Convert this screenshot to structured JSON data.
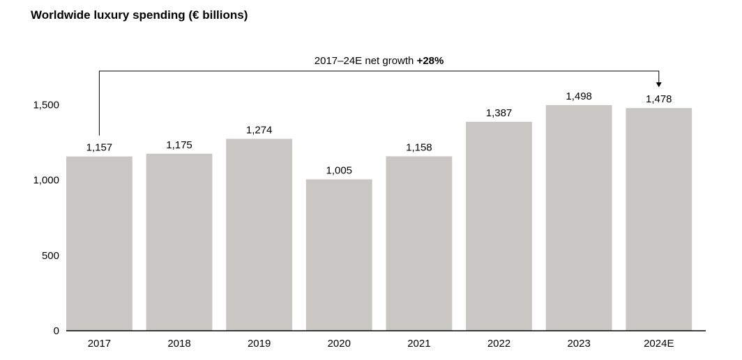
{
  "chart_data": {
    "type": "bar",
    "title": "Worldwide luxury spending (€ billions)",
    "categories": [
      "2017",
      "2018",
      "2019",
      "2020",
      "2021",
      "2022",
      "2023",
      "2024E"
    ],
    "values": [
      1157,
      1175,
      1274,
      1005,
      1158,
      1387,
      1498,
      1478
    ],
    "data_labels": [
      "1,157",
      "1,175",
      "1,274",
      "1,005",
      "1,158",
      "1,387",
      "1,498",
      "1,478"
    ],
    "ylim": [
      0,
      1650
    ],
    "yticks": [
      0,
      500,
      1000,
      1500
    ],
    "ytick_labels": [
      "0",
      "500",
      "1,000",
      "1,500"
    ],
    "grid": false,
    "bar_color": "#c8c7c4",
    "annotation": {
      "from": "2017",
      "to": "2024E",
      "text": "2017–24E net growth",
      "value_text": "+28%"
    }
  }
}
